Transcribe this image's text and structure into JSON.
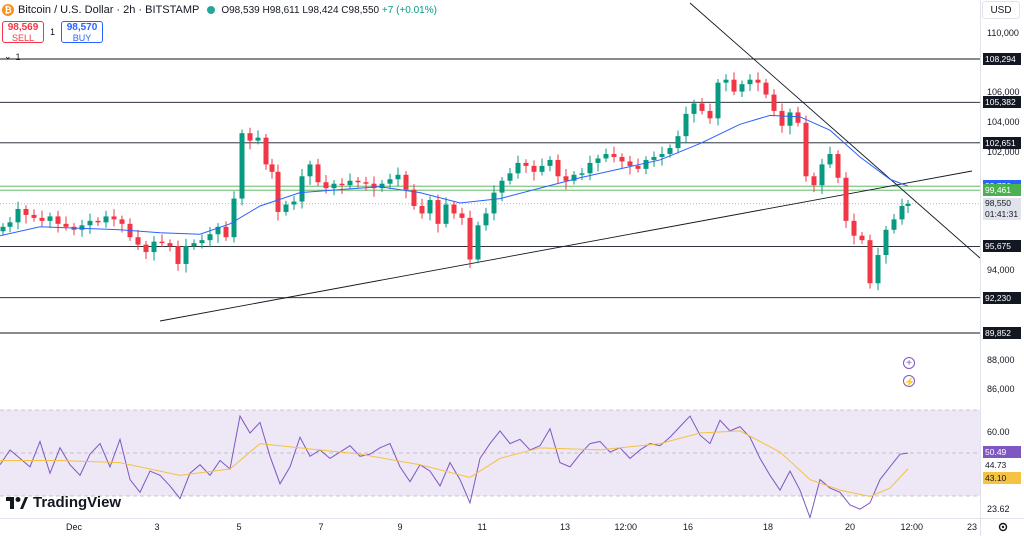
{
  "header": {
    "symbol_title": "Bitcoin / U.S. Dollar · 2h · BITSTAMP",
    "open": "O98,539",
    "high": "H98,611",
    "low": "L98,424",
    "close": "C98,550",
    "change": "+7 (+0.01%)"
  },
  "trade": {
    "sell_price": "98,569",
    "sell_label": "SELL",
    "spread": "1",
    "buy_price": "98,570",
    "buy_label": "BUY"
  },
  "indicator_toggle": "1",
  "currency": "USD",
  "price_axis": {
    "ticks": [
      {
        "label": "110,000",
        "v": 110000
      },
      {
        "label": "106,000",
        "v": 106000
      },
      {
        "label": "104,000",
        "v": 104000
      },
      {
        "label": "102,000",
        "v": 102000
      },
      {
        "label": "94,000",
        "v": 94000
      },
      {
        "label": "88,000",
        "v": 88000
      },
      {
        "label": "86,000",
        "v": 86000
      }
    ],
    "levels": [
      {
        "label": "108,294",
        "v": 108294,
        "color": "#131722",
        "bg": "#131722"
      },
      {
        "label": "105,382",
        "v": 105382,
        "color": "#131722",
        "bg": "#131722"
      },
      {
        "label": "102,651",
        "v": 102651,
        "color": "#131722",
        "bg": "#131722"
      },
      {
        "label": "99,736",
        "v": 99736,
        "color": "#4caf50",
        "bg": "#2962ff"
      },
      {
        "label": "99,461",
        "v": 99461,
        "color": "#4caf50",
        "bg": "#4caf50"
      },
      {
        "label": "95,675",
        "v": 95675,
        "color": "#131722",
        "bg": "#131722"
      },
      {
        "label": "92,230",
        "v": 92230,
        "color": "#131722",
        "bg": "#131722"
      },
      {
        "label": "89,852",
        "v": 89852,
        "color": "#131722",
        "bg": "#131722"
      }
    ],
    "current_price": "98,550",
    "countdown": "01:41:31"
  },
  "rsi_axis": {
    "ticks": [
      {
        "label": "60.00",
        "v": 60
      },
      {
        "label": "23.62",
        "v": 23.62
      }
    ],
    "rsi_value": "50.49",
    "level_44": "44.73",
    "ma_value": "43.10"
  },
  "time_axis": [
    {
      "label": "Dec",
      "x": 74
    },
    {
      "label": "3",
      "x": 157
    },
    {
      "label": "5",
      "x": 239
    },
    {
      "label": "7",
      "x": 321
    },
    {
      "label": "9",
      "x": 400
    },
    {
      "label": "11",
      "x": 482
    },
    {
      "label": "13",
      "x": 565
    },
    {
      "label": "12:00",
      "x": 626
    },
    {
      "label": "16",
      "x": 688
    },
    {
      "label": "18",
      "x": 768
    },
    {
      "label": "20",
      "x": 850
    },
    {
      "label": "12:00",
      "x": 912
    },
    {
      "label": "23",
      "x": 972
    }
  ],
  "brand": "TradingView",
  "colors": {
    "up": "#089981",
    "down": "#f23645",
    "ma": "#2962ff",
    "rsi": "#7e57c2",
    "rsi_ma": "#f5c242"
  },
  "icons": {
    "alert_add": "plus-circle-icon",
    "fast_action": "lightning-icon",
    "settings": "gear-icon"
  }
}
